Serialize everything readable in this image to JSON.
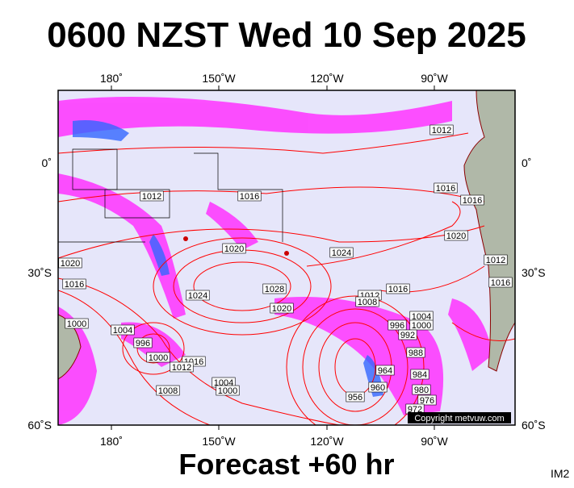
{
  "map": {
    "title": "0600 NZST Wed 10 Sep 2025",
    "footer": "Forecast +60 hr",
    "corner_tag": "IM2",
    "copyright": "Copyright metvuw.com",
    "lon_labels": [
      "180˚",
      "150˚W",
      "120˚W",
      "90˚W"
    ],
    "lat_labels": [
      "0˚",
      "30˚S",
      "60˚S"
    ],
    "isobar_labels": [
      1012,
      1012,
      1016,
      1016,
      1016,
      1020,
      1024,
      1020,
      1020,
      1016,
      1028,
      1024,
      1020,
      1012,
      1008,
      1016,
      1012,
      1016,
      1004,
      1000,
      996,
      992,
      988,
      1000,
      1004,
      996,
      1000,
      1016,
      1012,
      1004,
      1000,
      1008,
      984,
      980,
      976,
      972,
      964,
      960,
      956
    ]
  }
}
